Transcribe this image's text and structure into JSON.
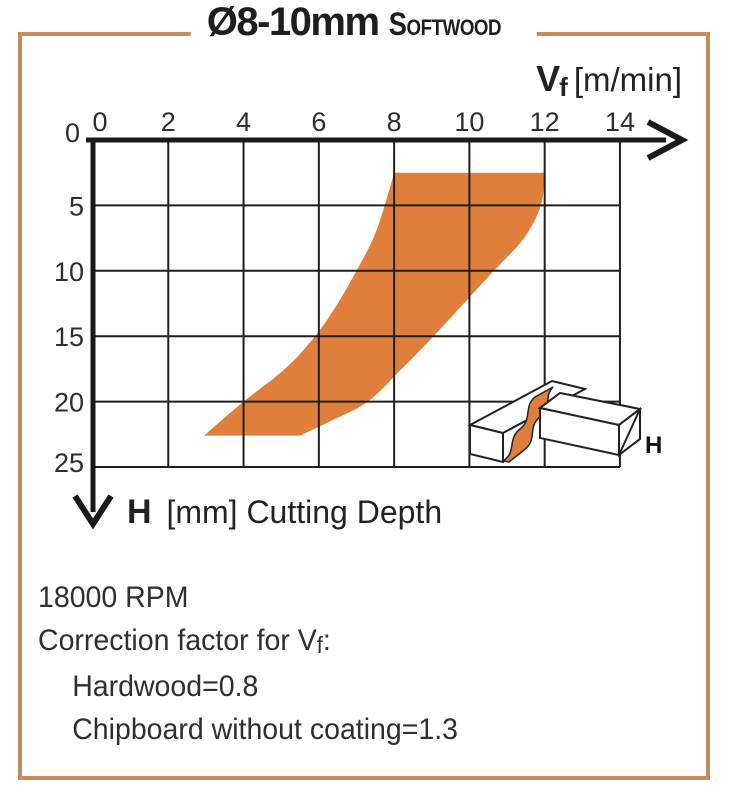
{
  "title": {
    "diameter_range": "Ø8-10mm",
    "material": "Softwood"
  },
  "colors": {
    "band_orange": "#e07e3c",
    "frame_tan": "#c38c5e",
    "ink": "#1a1a1a",
    "grid": "#1f1f1f",
    "background": "#ffffff"
  },
  "chart_data": {
    "type": "area",
    "title": "Ø8-10mm Softwood recommended feed rate",
    "xlabel": {
      "symbol": "V",
      "subscript": "f",
      "unit": "[m/min]"
    },
    "ylabel": {
      "symbol": "H",
      "rest": "[mm] Cutting Depth"
    },
    "xlim": [
      0,
      14
    ],
    "ylim": [
      0,
      25
    ],
    "x_ticks": [
      0,
      2,
      4,
      6,
      8,
      10,
      12,
      14
    ],
    "y_ticks": [
      0,
      5,
      10,
      15,
      20,
      25
    ],
    "grid": true,
    "x_axis_position": "top",
    "y_axis_direction": "down",
    "legend_position": "none",
    "band": {
      "name": "recommended-operating-region",
      "color": "#e07e3c",
      "left_boundary": [
        [
          2.95,
          22.6
        ],
        [
          4.0,
          20
        ],
        [
          5.1,
          17.5
        ],
        [
          5.9,
          15
        ],
        [
          6.5,
          12.5
        ],
        [
          7.0,
          10
        ],
        [
          7.45,
          7.5
        ],
        [
          7.75,
          5
        ],
        [
          8.0,
          2.5
        ]
      ],
      "right_boundary": [
        [
          12.0,
          2.5
        ],
        [
          11.9,
          5
        ],
        [
          11.45,
          7.5
        ],
        [
          10.65,
          10
        ],
        [
          9.85,
          12.5
        ],
        [
          9.05,
          15
        ],
        [
          8.2,
          17.5
        ],
        [
          7.3,
          20
        ],
        [
          6.3,
          21.5
        ],
        [
          5.5,
          22.6
        ]
      ]
    },
    "icon_label": "H"
  },
  "notes": {
    "rpm": "18000 RPM",
    "correction": {
      "prefix": "Correction factor for V",
      "subscript": "f",
      "suffix": ":"
    },
    "factors": [
      "Hardwood=0.8",
      "Chipboard without coating=1.3"
    ]
  }
}
